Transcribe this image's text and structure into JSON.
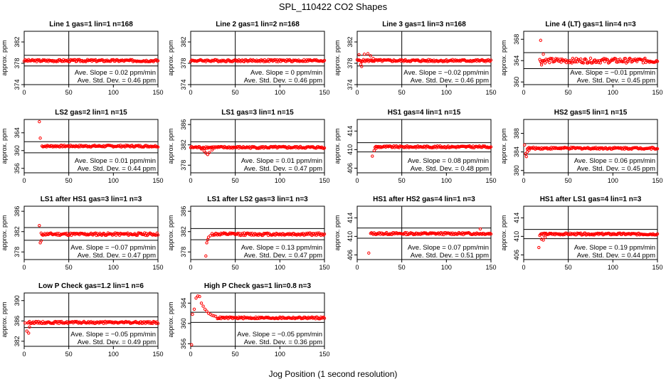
{
  "figure": {
    "title": "SPL_110422  CO2 Shapes",
    "xlabel": "Jog Position (1 second resolution)"
  },
  "chart_data": [
    {
      "type": "scatter",
      "title": "Line 1 gas=1 lin=1 n=168",
      "ylabel": "approx. ppm",
      "xlim": [
        0,
        150
      ],
      "ylim": [
        374,
        384
      ],
      "yticks": [
        374,
        378,
        382
      ],
      "xticks": [
        0,
        50,
        100,
        150
      ],
      "hlines": [
        379.5,
        377.5
      ],
      "slope_text": "Ave. Slope = 0.02  ppm/min",
      "sd_text": "Ave. Std. Dev. = 0.46  ppm",
      "marker_color": "#ff0000",
      "x_start": 0,
      "x_end": 150,
      "baseline": 378.5,
      "noise": 0.2,
      "spikes": []
    },
    {
      "type": "scatter",
      "title": "Line 2 gas=1 lin=2 n=168",
      "ylabel": "approx. ppm",
      "xlim": [
        0,
        150
      ],
      "ylim": [
        374,
        384
      ],
      "yticks": [
        374,
        378,
        382
      ],
      "xticks": [
        0,
        50,
        100,
        150
      ],
      "hlines": [
        379.5,
        377.5
      ],
      "slope_text": "Ave. Slope = 0  ppm/min",
      "sd_text": "Ave. Std. Dev. = 0.46  ppm",
      "marker_color": "#ff0000",
      "x_start": 0,
      "x_end": 150,
      "baseline": 378.5,
      "noise": 0.2,
      "spikes": []
    },
    {
      "type": "scatter",
      "title": "Line 3 gas=1 lin=3 n=168",
      "ylabel": "approx. ppm",
      "xlim": [
        0,
        150
      ],
      "ylim": [
        374,
        384
      ],
      "yticks": [
        374,
        378,
        382
      ],
      "xticks": [
        0,
        50,
        100,
        150
      ],
      "hlines": [
        379.5,
        377.5
      ],
      "slope_text": "Ave. Slope = −0.02  ppm/min",
      "sd_text": "Ave. Std. Dev. = 0.46  ppm",
      "marker_color": "#ff0000",
      "x_start": 0,
      "x_end": 150,
      "baseline": 378.5,
      "noise": 0.2,
      "spikes": [
        [
          2,
          379.6
        ],
        [
          4,
          377.8
        ],
        [
          5,
          377.4
        ],
        [
          8,
          379.7
        ],
        [
          12,
          379.8
        ],
        [
          15,
          379.4
        ],
        [
          18,
          378.9
        ]
      ]
    },
    {
      "type": "scatter",
      "title": "Line 4 (LT) gas=1 lin=4 n=3",
      "ylabel": "approx. ppm",
      "xlim": [
        0,
        150
      ],
      "ylim": [
        359.5,
        369.5
      ],
      "yticks": [
        360,
        364,
        368
      ],
      "xticks": [
        0,
        50,
        100,
        150
      ],
      "hlines": [
        365.5,
        362.5
      ],
      "slope_text": "Ave. Slope = −0.01  ppm/min",
      "sd_text": "Ave. Std. Dev. = 0.45  ppm",
      "marker_color": "#ff0000",
      "x_start": 18,
      "x_end": 150,
      "baseline": 364,
      "noise": 0.45,
      "spikes": [
        [
          19,
          367.8
        ],
        [
          20,
          363.2
        ],
        [
          22,
          365.2
        ]
      ]
    },
    {
      "type": "scatter",
      "title": "LS2 gas=2 lin=1 n=15",
      "ylabel": "approx. ppm",
      "xlim": [
        0,
        150
      ],
      "ylim": [
        355,
        367
      ],
      "yticks": [
        356,
        360,
        364
      ],
      "xticks": [
        0,
        50,
        100,
        150
      ],
      "hlines": [
        362,
        359.5
      ],
      "slope_text": "Ave. Slope = 0.01  ppm/min",
      "sd_text": "Ave. Std. Dev. = 0.44  ppm",
      "marker_color": "#ff0000",
      "x_start": 20,
      "x_end": 150,
      "baseline": 361,
      "noise": 0.2,
      "spikes": [
        [
          17,
          366.5
        ],
        [
          18,
          362.8
        ]
      ]
    },
    {
      "type": "scatter",
      "title": "LS1 gas=3 lin=1 n=15",
      "ylabel": "approx. ppm",
      "xlim": [
        0,
        150
      ],
      "ylim": [
        376.5,
        387
      ],
      "yticks": [
        378,
        382,
        386
      ],
      "xticks": [
        0,
        50,
        100,
        150
      ],
      "hlines": [
        382.6,
        380.4
      ],
      "slope_text": "Ave. Slope = 0.01  ppm/min",
      "sd_text": "Ave. Std. Dev. = 0.47  ppm",
      "marker_color": "#ff0000",
      "x_start": 0,
      "x_end": 150,
      "baseline": 381.5,
      "noise": 0.2,
      "spikes": [
        [
          12,
          381.2
        ],
        [
          15,
          380.8
        ],
        [
          17,
          380.4
        ],
        [
          19,
          380.1
        ],
        [
          21,
          380.5
        ],
        [
          24,
          381.0
        ]
      ]
    },
    {
      "type": "scatter",
      "title": "HS1 gas=4 lin=1 n=15",
      "ylabel": "approx. ppm",
      "xlim": [
        0,
        150
      ],
      "ylim": [
        405,
        416.5
      ],
      "yticks": [
        406,
        410,
        414
      ],
      "xticks": [
        0,
        50,
        100,
        150
      ],
      "hlines": [
        411.5,
        409.5
      ],
      "slope_text": "Ave. Slope = 0.08  ppm/min",
      "sd_text": "Ave. Std. Dev. = 0.48  ppm",
      "marker_color": "#ff0000",
      "x_start": 20,
      "x_end": 150,
      "baseline": 410.6,
      "noise": 0.2,
      "spikes": [
        [
          17,
          408.6
        ],
        [
          19,
          409.8
        ],
        [
          21,
          410.2
        ]
      ]
    },
    {
      "type": "scatter",
      "title": "HS2 gas=5 lin=1 n=15",
      "ylabel": "approx. ppm",
      "xlim": [
        0,
        150
      ],
      "ylim": [
        379.5,
        391
      ],
      "yticks": [
        380,
        384,
        388
      ],
      "xticks": [
        0,
        50,
        100,
        150
      ],
      "hlines": [
        385.8,
        383.5
      ],
      "slope_text": "Ave. Slope = 0.06  ppm/min",
      "sd_text": "Ave. Std. Dev. = 0.45  ppm",
      "marker_color": "#ff0000",
      "x_start": 4,
      "x_end": 150,
      "baseline": 384.8,
      "noise": 0.2,
      "spikes": [
        [
          1,
          385.5
        ],
        [
          2,
          383.6
        ],
        [
          3,
          383.0
        ],
        [
          4,
          384.0
        ],
        [
          6,
          384.4
        ]
      ]
    },
    {
      "type": "scatter",
      "title": "LS1 after HS1 gas=3 lin=1 n=3",
      "ylabel": "approx. ppm",
      "xlim": [
        0,
        150
      ],
      "ylim": [
        376.5,
        387
      ],
      "yticks": [
        378,
        382,
        386
      ],
      "xticks": [
        0,
        50,
        100,
        150
      ],
      "hlines": [
        382.8,
        380.3
      ],
      "slope_text": "Ave. Slope = −0.07  ppm/min",
      "sd_text": "Ave. Std. Dev. = 0.47  ppm",
      "marker_color": "#ff0000",
      "x_start": 19,
      "x_end": 150,
      "baseline": 381.5,
      "noise": 0.25,
      "spikes": [
        [
          17,
          383.2
        ],
        [
          18,
          379.8
        ],
        [
          19,
          380.2
        ]
      ]
    },
    {
      "type": "scatter",
      "title": "LS1 after LS2 gas=3 lin=1 n=3",
      "ylabel": "approx. ppm",
      "xlim": [
        0,
        150
      ],
      "ylim": [
        376.5,
        387
      ],
      "yticks": [
        378,
        382,
        386
      ],
      "xticks": [
        0,
        50,
        100,
        150
      ],
      "hlines": [
        382.6,
        380.4
      ],
      "slope_text": "Ave. Slope = 0.13  ppm/min",
      "sd_text": "Ave. Std. Dev. = 0.47  ppm",
      "marker_color": "#ff0000",
      "x_start": 24,
      "x_end": 150,
      "baseline": 381.5,
      "noise": 0.25,
      "spikes": [
        [
          17,
          377.2
        ],
        [
          18,
          379.8
        ],
        [
          19,
          380.4
        ],
        [
          20,
          380.9
        ],
        [
          22,
          381.2
        ]
      ]
    },
    {
      "type": "scatter",
      "title": "HS1 after HS2 gas=4 lin=1 n=3",
      "ylabel": "approx. ppm",
      "xlim": [
        0,
        150
      ],
      "ylim": [
        405,
        416.5
      ],
      "yticks": [
        406,
        410,
        414
      ],
      "xticks": [
        0,
        50,
        100,
        150
      ],
      "hlines": [
        411.8,
        409.6
      ],
      "slope_text": "Ave. Slope = 0.07  ppm/min",
      "sd_text": "Ave. Std. Dev. = 0.51  ppm",
      "marker_color": "#ff0000",
      "x_start": 15,
      "x_end": 150,
      "baseline": 410.6,
      "noise": 0.22,
      "spikes": [
        [
          13,
          406.4
        ],
        [
          138,
          411.6
        ]
      ]
    },
    {
      "type": "scatter",
      "title": "HS1 after LS1 gas=4 lin=1 n=3",
      "ylabel": "approx. ppm",
      "xlim": [
        0,
        150
      ],
      "ylim": [
        405,
        416.5
      ],
      "yticks": [
        406,
        410,
        414
      ],
      "xticks": [
        0,
        50,
        100,
        150
      ],
      "hlines": [
        411.5,
        409.5
      ],
      "slope_text": "Ave. Slope = 0.19  ppm/min",
      "sd_text": "Ave. Std. Dev. = 0.44  ppm",
      "marker_color": "#ff0000",
      "x_start": 19,
      "x_end": 150,
      "baseline": 410.5,
      "noise": 0.2,
      "spikes": [
        [
          17,
          407.6
        ],
        [
          18,
          410.2
        ],
        [
          20,
          409.4
        ],
        [
          22,
          409.2
        ],
        [
          24,
          409.8
        ]
      ]
    },
    {
      "type": "scatter",
      "title": "Low P Check gas=1.2 lin=1 n=6",
      "ylabel": "approx. ppm",
      "xlim": [
        0,
        150
      ],
      "ylim": [
        381,
        391.5
      ],
      "yticks": [
        382,
        386,
        390
      ],
      "xticks": [
        0,
        50,
        100,
        150
      ],
      "hlines": [
        386.8,
        384.7
      ],
      "slope_text": "Ave. Slope = −0.05  ppm/min",
      "sd_text": "Ave. Std. Dev. = 0.49  ppm",
      "marker_color": "#ff0000",
      "x_start": 4,
      "x_end": 150,
      "baseline": 385.7,
      "noise": 0.2,
      "spikes": [
        [
          1,
          385.6
        ],
        [
          3,
          384.0
        ],
        [
          5,
          383.6
        ],
        [
          6,
          384.8
        ]
      ]
    },
    {
      "type": "scatter",
      "title": "High P Check gas=1 lin=0.8 n=3",
      "ylabel": "approx. ppm",
      "xlim": [
        0,
        150
      ],
      "ylim": [
        355.5,
        366
      ],
      "yticks": [
        356,
        360,
        364
      ],
      "xticks": [
        0,
        50,
        100,
        150
      ],
      "hlines": [
        362.2,
        360.2
      ],
      "slope_text": "Ave. Slope = −0.05  ppm/min",
      "sd_text": "Ave. Std. Dev. = 0.36  ppm",
      "marker_color": "#ff0000",
      "x_start": 30,
      "x_end": 150,
      "baseline": 361.1,
      "noise": 0.18,
      "spikes": [
        [
          1,
          355.8
        ],
        [
          2,
          361.8
        ],
        [
          4,
          362.8
        ],
        [
          6,
          365.0
        ],
        [
          8,
          365.4
        ],
        [
          10,
          365.3
        ],
        [
          12,
          364.0
        ],
        [
          14,
          363.4
        ],
        [
          16,
          362.8
        ],
        [
          18,
          362.4
        ],
        [
          20,
          362.0
        ],
        [
          22,
          361.8
        ],
        [
          24,
          361.6
        ],
        [
          26,
          361.5
        ],
        [
          28,
          361.4
        ]
      ]
    }
  ]
}
